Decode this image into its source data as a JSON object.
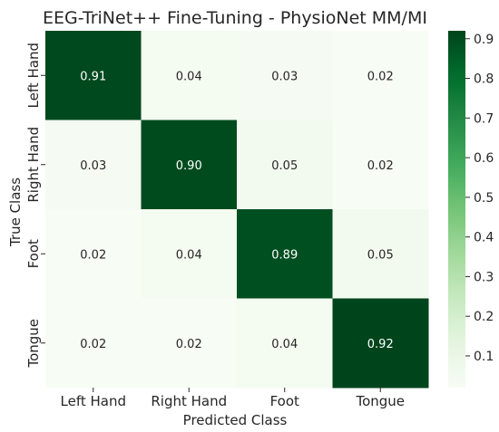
{
  "chart_data": {
    "type": "heatmap",
    "title": "EEG-TriNet++ Fine-Tuning - PhysioNet MM/MI",
    "xlabel": "Predicted Class",
    "ylabel": "True Class",
    "x_categories": [
      "Left Hand",
      "Right Hand",
      "Foot",
      "Tongue"
    ],
    "y_categories": [
      "Left Hand",
      "Right Hand",
      "Foot",
      "Tongue"
    ],
    "values": [
      [
        0.91,
        0.04,
        0.03,
        0.02
      ],
      [
        0.03,
        0.9,
        0.05,
        0.02
      ],
      [
        0.02,
        0.04,
        0.89,
        0.05
      ],
      [
        0.02,
        0.02,
        0.04,
        0.92
      ]
    ],
    "value_labels": [
      [
        "0.91",
        "0.04",
        "0.03",
        "0.02"
      ],
      [
        "0.03",
        "0.90",
        "0.05",
        "0.02"
      ],
      [
        "0.02",
        "0.04",
        "0.89",
        "0.05"
      ],
      [
        "0.02",
        "0.02",
        "0.04",
        "0.92"
      ]
    ],
    "colormap": "Greens",
    "color_range": [
      0.02,
      0.92
    ],
    "colorbar_ticks": [
      "0.1",
      "0.2",
      "0.3",
      "0.4",
      "0.5",
      "0.6",
      "0.7",
      "0.8",
      "0.9"
    ],
    "colorbar_tick_values": [
      0.1,
      0.2,
      0.3,
      0.4,
      0.5,
      0.6,
      0.7,
      0.8,
      0.9
    ],
    "colors": {
      "low": "#f7fcf5",
      "high": "#00441b"
    }
  }
}
